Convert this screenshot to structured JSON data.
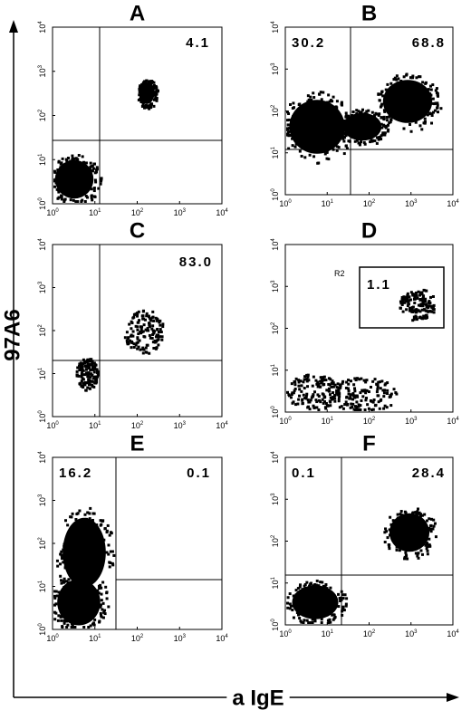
{
  "axes": {
    "y_label": "97A6",
    "x_label": "a IgE"
  },
  "tick_base": "10",
  "tick_exponents": [
    "0",
    "1",
    "2",
    "3",
    "4"
  ],
  "panels": [
    {
      "label": "A",
      "annotations": [
        "4.1"
      ]
    },
    {
      "label": "B",
      "annotations": [
        "30.2",
        "68.8"
      ]
    },
    {
      "label": "C",
      "annotations": [
        "83.0"
      ]
    },
    {
      "label": "D",
      "gate_label": "R2",
      "annotations": [
        "1.1"
      ]
    },
    {
      "label": "E",
      "annotations": [
        "16.2",
        "0.1"
      ]
    },
    {
      "label": "F",
      "annotations": [
        "0.1",
        "28.4"
      ]
    }
  ]
}
